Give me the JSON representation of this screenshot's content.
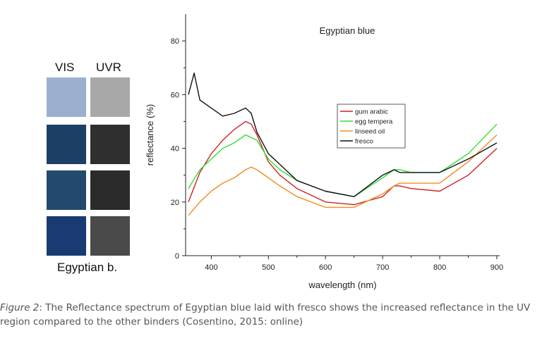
{
  "swatches": {
    "col_vis": "VIS",
    "col_uvr": "UVR",
    "label": "Egyptian b.",
    "rows": [
      {
        "vis_color": "#9bb0cf",
        "uvr_color": "#a8a8a8"
      },
      {
        "vis_color": "#1d3f66",
        "uvr_color": "#2f2f2f"
      },
      {
        "vis_color": "#24496f",
        "uvr_color": "#2b2b2b"
      },
      {
        "vis_color": "#1a3a73",
        "uvr_color": "#4a4a4a"
      }
    ]
  },
  "chart_data": {
    "type": "line",
    "title": "Egyptian blue",
    "xlabel": "wavelength (nm)",
    "ylabel": "reflectance (%)",
    "xlim": [
      355,
      905
    ],
    "ylim": [
      0,
      90
    ],
    "xticks": [
      400,
      500,
      600,
      700,
      800,
      900
    ],
    "yticks": [
      0,
      20,
      40,
      60,
      80
    ],
    "grid": false,
    "legend_position": "right-center",
    "series": [
      {
        "name": "gum arabic",
        "color": "#cc2222",
        "x": [
          360,
          380,
          400,
          420,
          440,
          460,
          470,
          480,
          500,
          520,
          550,
          600,
          650,
          700,
          720,
          730,
          750,
          800,
          850,
          900
        ],
        "y": [
          20,
          31,
          38,
          43,
          47,
          50,
          49,
          45,
          35,
          30,
          25,
          20,
          19,
          22,
          26,
          26,
          25,
          24,
          30,
          40
        ]
      },
      {
        "name": "egg tempera",
        "color": "#33dd33",
        "x": [
          360,
          380,
          400,
          420,
          440,
          460,
          470,
          480,
          500,
          520,
          550,
          600,
          650,
          700,
          720,
          730,
          750,
          800,
          850,
          900
        ],
        "y": [
          25,
          32,
          36,
          40,
          42,
          45,
          44,
          43,
          36,
          32,
          28,
          24,
          22,
          29,
          32,
          32,
          31,
          31,
          38,
          49
        ]
      },
      {
        "name": "linseed oil",
        "color": "#f08c1e",
        "x": [
          360,
          380,
          400,
          420,
          440,
          460,
          470,
          480,
          500,
          520,
          550,
          600,
          650,
          700,
          720,
          730,
          750,
          800,
          850,
          900
        ],
        "y": [
          15,
          20,
          24,
          27,
          29,
          32,
          33,
          32,
          29,
          26,
          22,
          18,
          18,
          23,
          26,
          27,
          27,
          27,
          35,
          45
        ]
      },
      {
        "name": "fresco",
        "color": "#111111",
        "x": [
          360,
          370,
          380,
          400,
          420,
          440,
          460,
          470,
          480,
          500,
          520,
          550,
          600,
          650,
          700,
          720,
          730,
          750,
          800,
          850,
          900
        ],
        "y": [
          60,
          68,
          58,
          55,
          52,
          53,
          55,
          53,
          46,
          38,
          34,
          28,
          24,
          22,
          30,
          32,
          31,
          31,
          31,
          36,
          42
        ]
      }
    ]
  },
  "caption": {
    "figure_label": "Figure 2",
    "text": ": The Reflectance spectrum of Egyptian blue laid with fresco shows the increased reflectance in the UV region compared to the other binders (Cosentino, 2015: online)"
  }
}
